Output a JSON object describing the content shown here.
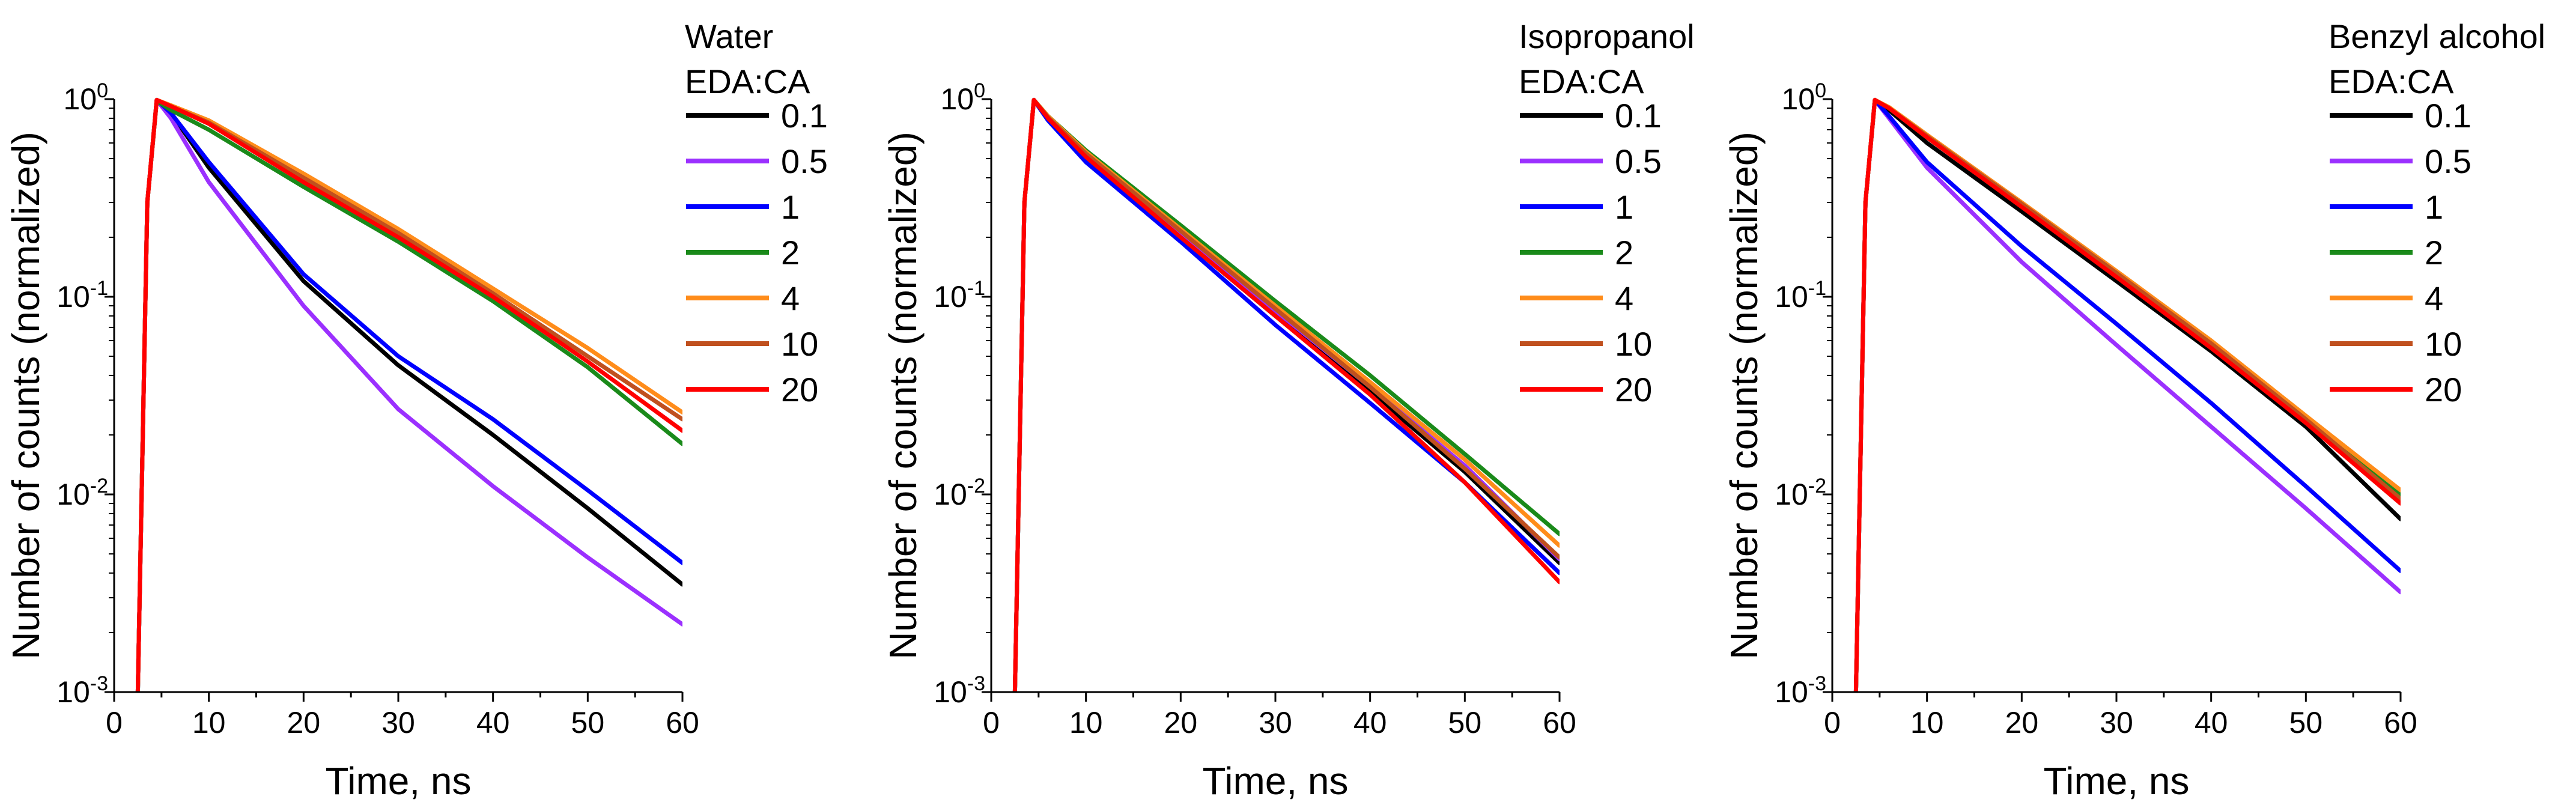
{
  "figure": {
    "xlabel": "Time, ns",
    "ylabel": "Number of counts (normalized)",
    "legend_title": "EDA:CA"
  },
  "chart_data": [
    {
      "type": "line",
      "panel_title": "Water",
      "legend_title": "EDA:CA",
      "xlabel": "Time, ns",
      "ylabel": "Number of counts (normalized)",
      "yscale": "log",
      "xlim": [
        0,
        60
      ],
      "ylim": [
        0.001,
        1
      ],
      "x_ticks": [
        "0",
        "10",
        "20",
        "30",
        "40",
        "50",
        "60"
      ],
      "y_ticks": [
        {
          "base": "10",
          "exp": "0"
        },
        {
          "base": "10",
          "exp": "-1"
        },
        {
          "base": "10",
          "exp": "-2"
        },
        {
          "base": "10",
          "exp": "-3"
        }
      ],
      "legend_position": "top-right",
      "series": [
        {
          "name": "0.1",
          "color": "#000000",
          "x": [
            2.5,
            3.5,
            4.5,
            6,
            10,
            20,
            30,
            40,
            50,
            60
          ],
          "y": [
            0.001,
            0.3,
            0.99,
            0.85,
            0.45,
            0.12,
            0.045,
            0.02,
            0.0085,
            0.0035
          ]
        },
        {
          "name": "0.5",
          "color": "#9b30ff",
          "x": [
            2.5,
            3.5,
            4.5,
            6,
            10,
            20,
            30,
            40,
            50,
            60
          ],
          "y": [
            0.001,
            0.3,
            0.99,
            0.8,
            0.38,
            0.09,
            0.027,
            0.011,
            0.0048,
            0.0022
          ]
        },
        {
          "name": "1",
          "color": "#0000ff",
          "x": [
            2.5,
            3.5,
            4.5,
            6,
            10,
            20,
            30,
            40,
            50,
            60
          ],
          "y": [
            0.001,
            0.3,
            0.99,
            0.85,
            0.48,
            0.13,
            0.05,
            0.024,
            0.0105,
            0.0045
          ]
        },
        {
          "name": "2",
          "color": "#1a8a1a",
          "x": [
            2.5,
            3.5,
            4.5,
            6,
            10,
            20,
            30,
            40,
            50,
            60
          ],
          "y": [
            0.001,
            0.3,
            0.98,
            0.88,
            0.7,
            0.36,
            0.19,
            0.095,
            0.044,
            0.018
          ]
        },
        {
          "name": "4",
          "color": "#ff8c1a",
          "x": [
            2.5,
            3.5,
            4.5,
            6,
            10,
            20,
            30,
            40,
            50,
            60
          ],
          "y": [
            0.001,
            0.3,
            0.99,
            0.93,
            0.78,
            0.42,
            0.22,
            0.11,
            0.055,
            0.026
          ]
        },
        {
          "name": "10",
          "color": "#c0501e",
          "x": [
            2.5,
            3.5,
            4.5,
            6,
            10,
            20,
            30,
            40,
            50,
            60
          ],
          "y": [
            0.001,
            0.3,
            0.99,
            0.92,
            0.76,
            0.4,
            0.21,
            0.104,
            0.05,
            0.024
          ]
        },
        {
          "name": "20",
          "color": "#ff0000",
          "x": [
            2.5,
            3.5,
            4.5,
            6,
            10,
            20,
            30,
            40,
            50,
            60
          ],
          "y": [
            0.001,
            0.3,
            0.99,
            0.92,
            0.75,
            0.38,
            0.2,
            0.1,
            0.047,
            0.021
          ]
        }
      ]
    },
    {
      "type": "line",
      "panel_title": "Isopropanol",
      "legend_title": "EDA:CA",
      "xlabel": "Time, ns",
      "ylabel": "Number of counts (normalized)",
      "yscale": "log",
      "xlim": [
        0,
        60
      ],
      "ylim": [
        0.001,
        1
      ],
      "x_ticks": [
        "0",
        "10",
        "20",
        "30",
        "40",
        "50",
        "60"
      ],
      "y_ticks": [
        {
          "base": "10",
          "exp": "0"
        },
        {
          "base": "10",
          "exp": "-1"
        },
        {
          "base": "10",
          "exp": "-2"
        },
        {
          "base": "10",
          "exp": "-3"
        }
      ],
      "legend_position": "top-right",
      "series": [
        {
          "name": "0.1",
          "color": "#000000",
          "x": [
            2.5,
            3.5,
            4.5,
            6,
            10,
            20,
            30,
            40,
            50,
            60
          ],
          "y": [
            0.001,
            0.3,
            0.99,
            0.8,
            0.5,
            0.2,
            0.08,
            0.033,
            0.013,
            0.0045
          ]
        },
        {
          "name": "0.5",
          "color": "#9b30ff",
          "x": [
            2.5,
            3.5,
            4.5,
            6,
            10,
            20,
            30,
            40,
            50,
            60
          ],
          "y": [
            0.001,
            0.3,
            0.99,
            0.8,
            0.52,
            0.21,
            0.085,
            0.035,
            0.014,
            0.0047
          ]
        },
        {
          "name": "1",
          "color": "#0000ff",
          "x": [
            2.5,
            3.5,
            4.5,
            6,
            10,
            20,
            30,
            40,
            50,
            60
          ],
          "y": [
            0.001,
            0.3,
            0.99,
            0.78,
            0.48,
            0.19,
            0.072,
            0.029,
            0.0115,
            0.004
          ]
        },
        {
          "name": "2",
          "color": "#1a8a1a",
          "x": [
            2.5,
            3.5,
            4.5,
            6,
            10,
            20,
            30,
            40,
            50,
            60
          ],
          "y": [
            0.001,
            0.3,
            0.99,
            0.82,
            0.55,
            0.23,
            0.095,
            0.04,
            0.016,
            0.0063
          ]
        },
        {
          "name": "4",
          "color": "#ff8c1a",
          "x": [
            2.5,
            3.5,
            4.5,
            6,
            10,
            20,
            30,
            40,
            50,
            60
          ],
          "y": [
            0.001,
            0.3,
            0.99,
            0.82,
            0.54,
            0.22,
            0.09,
            0.037,
            0.015,
            0.0055
          ]
        },
        {
          "name": "10",
          "color": "#c0501e",
          "x": [
            2.5,
            3.5,
            4.5,
            6,
            10,
            20,
            30,
            40,
            50,
            60
          ],
          "y": [
            0.001,
            0.3,
            0.99,
            0.81,
            0.53,
            0.215,
            0.087,
            0.035,
            0.0135,
            0.0048
          ]
        },
        {
          "name": "20",
          "color": "#ff0000",
          "x": [
            2.5,
            3.5,
            4.5,
            6,
            10,
            20,
            30,
            40,
            50,
            60
          ],
          "y": [
            0.001,
            0.3,
            0.99,
            0.8,
            0.51,
            0.2,
            0.08,
            0.032,
            0.0115,
            0.0036
          ]
        }
      ]
    },
    {
      "type": "line",
      "panel_title": "Benzyl alcohol",
      "legend_title": "EDA:CA",
      "xlabel": "Time, ns",
      "ylabel": "Number of counts (normalized)",
      "yscale": "log",
      "xlim": [
        0,
        60
      ],
      "ylim": [
        0.001,
        1
      ],
      "x_ticks": [
        "0",
        "10",
        "20",
        "30",
        "40",
        "50",
        "60"
      ],
      "y_ticks": [
        {
          "base": "10",
          "exp": "0"
        },
        {
          "base": "10",
          "exp": "-1"
        },
        {
          "base": "10",
          "exp": "-2"
        },
        {
          "base": "10",
          "exp": "-3"
        }
      ],
      "legend_position": "top-right",
      "series": [
        {
          "name": "0.1",
          "color": "#000000",
          "x": [
            2.5,
            3.5,
            4.5,
            6,
            10,
            20,
            30,
            40,
            50,
            60
          ],
          "y": [
            0.001,
            0.3,
            0.99,
            0.88,
            0.6,
            0.27,
            0.12,
            0.053,
            0.022,
            0.0075
          ]
        },
        {
          "name": "0.5",
          "color": "#9b30ff",
          "x": [
            2.5,
            3.5,
            4.5,
            6,
            10,
            20,
            30,
            40,
            50,
            60
          ],
          "y": [
            0.001,
            0.3,
            0.99,
            0.8,
            0.45,
            0.15,
            0.057,
            0.022,
            0.0085,
            0.0032
          ]
        },
        {
          "name": "1",
          "color": "#0000ff",
          "x": [
            2.5,
            3.5,
            4.5,
            6,
            10,
            20,
            30,
            40,
            50,
            60
          ],
          "y": [
            0.001,
            0.3,
            0.99,
            0.82,
            0.48,
            0.18,
            0.073,
            0.029,
            0.011,
            0.0041
          ]
        },
        {
          "name": "2",
          "color": "#1a8a1a",
          "x": [
            2.5,
            3.5,
            4.5,
            6,
            10,
            20,
            30,
            40,
            50,
            60
          ],
          "y": [
            0.001,
            0.3,
            0.99,
            0.9,
            0.64,
            0.29,
            0.13,
            0.057,
            0.024,
            0.01
          ]
        },
        {
          "name": "4",
          "color": "#ff8c1a",
          "x": [
            2.5,
            3.5,
            4.5,
            6,
            10,
            20,
            30,
            40,
            50,
            60
          ],
          "y": [
            0.001,
            0.3,
            0.99,
            0.91,
            0.66,
            0.3,
            0.135,
            0.06,
            0.025,
            0.0105
          ]
        },
        {
          "name": "10",
          "color": "#c0501e",
          "x": [
            2.5,
            3.5,
            4.5,
            6,
            10,
            20,
            30,
            40,
            50,
            60
          ],
          "y": [
            0.001,
            0.3,
            0.99,
            0.9,
            0.65,
            0.295,
            0.132,
            0.058,
            0.024,
            0.0095
          ]
        },
        {
          "name": "20",
          "color": "#ff0000",
          "x": [
            2.5,
            3.5,
            4.5,
            6,
            10,
            20,
            30,
            40,
            50,
            60
          ],
          "y": [
            0.001,
            0.3,
            0.99,
            0.9,
            0.64,
            0.285,
            0.126,
            0.055,
            0.023,
            0.009
          ]
        }
      ]
    }
  ]
}
